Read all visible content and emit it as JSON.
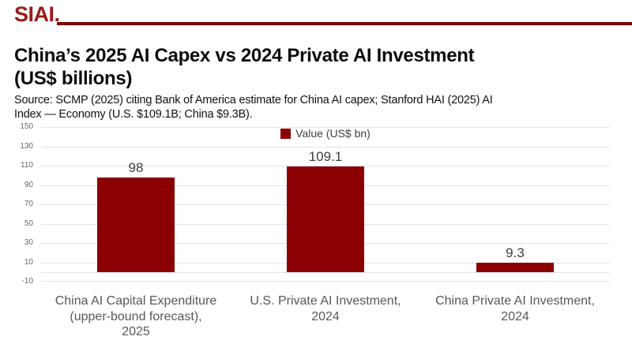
{
  "header": {
    "logo": "SIAI.",
    "title_display": "China’s 2025 AI Capex vs 2024 Private AI Investment\n(US$ billions)",
    "source_display": "Source: SCMP (2025) citing Bank of America estimate for China AI capex; Stanford HAI (2025) AI\nIndex — Economy (U.S. $109.1B; China $9.3B)."
  },
  "theme": {
    "brand_red": "#9B1B1B",
    "rule_red": "#7A0000",
    "bar_red": "#8B0000",
    "grid_gray": "#E3E3ED",
    "tick_gray": "#66666E",
    "label_gray": "#58585C",
    "data_label_gray": "#3F3F3F",
    "background": "#FFFFFF"
  },
  "chart_data": {
    "type": "bar",
    "title": "China’s 2025 AI Capex vs 2024 Private AI Investment (US$ billions)",
    "source": "Source: SCMP (2025) citing Bank of America estimate for China AI capex; Stanford HAI (2025) AI Index — Economy (U.S. $109.1B; China $9.3B).",
    "legend_label": "Value (US$ bn)",
    "legend_position": "top-center",
    "categories": [
      "China AI Capital Expenditure (upper-bound forecast), 2025",
      "U.S. Private AI Investment, 2024",
      "China Private AI Investment, 2024"
    ],
    "categories_wrapped": [
      "China AI Capital Expenditure\n(upper-bound forecast),\n2025",
      "U.S. Private AI Investment,\n2024",
      "China Private AI Investment,\n2024"
    ],
    "values": [
      98,
      109.1,
      9.3
    ],
    "data_labels": [
      "98",
      "109.1",
      "9.3"
    ],
    "xlabel": "",
    "ylabel": "",
    "ylim": [
      -10,
      150
    ],
    "yticks": [
      150,
      130,
      110,
      90,
      70,
      50,
      30,
      10,
      -10
    ],
    "gridlines": [
      150,
      130,
      110,
      90,
      70,
      50,
      30,
      10,
      0,
      -10
    ],
    "grid": true,
    "bar_color": "#8B0000"
  }
}
